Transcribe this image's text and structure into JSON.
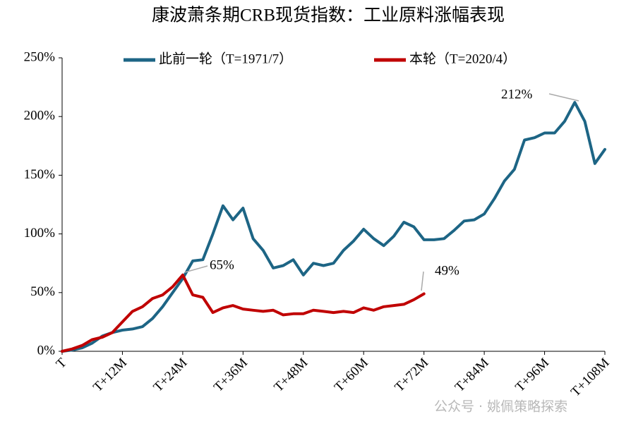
{
  "chart_data": {
    "type": "line",
    "title": "康波萧条期CRB现货指数：工业原料涨幅表现",
    "watermark": "公众号 · 姚佩策略探索",
    "x": [
      0,
      2,
      4,
      6,
      8,
      10,
      12,
      14,
      16,
      18,
      20,
      22,
      24,
      26,
      28,
      30,
      32,
      34,
      36,
      38,
      40,
      42,
      44,
      46,
      48,
      50,
      52,
      54,
      56,
      58,
      60,
      62,
      64,
      66,
      68,
      70,
      72,
      74,
      76,
      78,
      80,
      82,
      84,
      86,
      88,
      90,
      92,
      94,
      96,
      98,
      100,
      102,
      104,
      106,
      108
    ],
    "series": [
      {
        "name": "此前一轮（T=1971/7）",
        "color": "#1d6585",
        "values": [
          0,
          1,
          3,
          7,
          13,
          16,
          18,
          19,
          21,
          28,
          38,
          50,
          62,
          77,
          78,
          100,
          124,
          112,
          122,
          96,
          86,
          71,
          73,
          78,
          65,
          75,
          73,
          75,
          86,
          94,
          104,
          96,
          90,
          98,
          110,
          106,
          95,
          95,
          96,
          103,
          111,
          112,
          117,
          130,
          145,
          155,
          180,
          182,
          186,
          186,
          196,
          212,
          196,
          160,
          172
        ]
      },
      {
        "name": "本轮（T=2020/4）",
        "color": "#c00000",
        "values": [
          0,
          2,
          5,
          10,
          12,
          16,
          25,
          34,
          38,
          45,
          48,
          55,
          65,
          48,
          46,
          33,
          37,
          39,
          36,
          35,
          34,
          35,
          31,
          32,
          32,
          35,
          34,
          33,
          34,
          33,
          37,
          35,
          38,
          39,
          40,
          44,
          49,
          null,
          null,
          null,
          null,
          null,
          null,
          null,
          null,
          null,
          null,
          null,
          null,
          null,
          null,
          null,
          null,
          null,
          null
        ]
      }
    ],
    "annotations": [
      "212%",
      "65%",
      "49%"
    ],
    "xlim": [
      0,
      108
    ],
    "xticks": [
      {
        "value": 0,
        "label": "T"
      },
      {
        "value": 12,
        "label": "T+12M"
      },
      {
        "value": 24,
        "label": "T+24M"
      },
      {
        "value": 36,
        "label": "T+36M"
      },
      {
        "value": 48,
        "label": "T+48M"
      },
      {
        "value": 60,
        "label": "T+60M"
      },
      {
        "value": 72,
        "label": "T+72M"
      },
      {
        "value": 84,
        "label": "T+84M"
      },
      {
        "value": 96,
        "label": "T+96M"
      },
      {
        "value": 108,
        "label": "T+108M"
      }
    ],
    "ylim": [
      0,
      250
    ],
    "yticks": [
      {
        "value": 0,
        "label": "0%"
      },
      {
        "value": 50,
        "label": "50%"
      },
      {
        "value": 100,
        "label": "100%"
      },
      {
        "value": 150,
        "label": "150%"
      },
      {
        "value": 200,
        "label": "200%"
      },
      {
        "value": 250,
        "label": "250%"
      }
    ],
    "grid": false,
    "legend": "top"
  }
}
